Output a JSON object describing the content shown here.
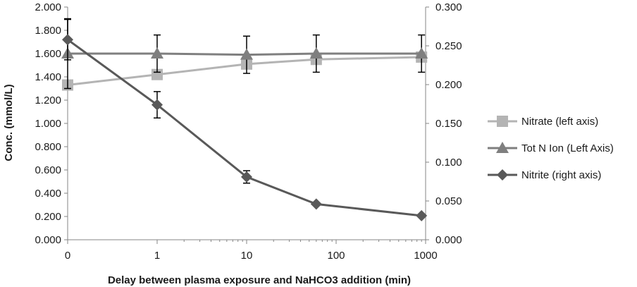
{
  "chart_data": {
    "type": "line",
    "title": "",
    "xlabel": "Delay between plasma exposure and NaHCO3 addition (min)",
    "ylabel": "Conc. (mmol/L)",
    "ylabel_right": "",
    "x_scale": "log",
    "x_tick_labels": [
      "0",
      "1",
      "10",
      "100",
      "1000"
    ],
    "ylim": [
      0,
      2.0
    ],
    "y_tick_labels": [
      "0.000",
      "0.200",
      "0.400",
      "0.600",
      "0.800",
      "1.000",
      "1.200",
      "1.400",
      "1.600",
      "1.800",
      "2.000"
    ],
    "ylim_right": [
      0,
      0.3
    ],
    "y_right_tick_labels": [
      "0.000",
      "0.050",
      "0.100",
      "0.150",
      "0.200",
      "0.250",
      "0.300"
    ],
    "grid": false,
    "legend_position": "right",
    "x": [
      "0",
      "1",
      "10",
      "60",
      "900"
    ],
    "series": [
      {
        "name": "Nitrate (left axis)",
        "axis": "left",
        "marker": "square",
        "color": "#b4b4b4",
        "values": [
          1.33,
          1.42,
          1.51,
          1.55,
          1.57
        ],
        "error": [
          0,
          0,
          0,
          0,
          0
        ]
      },
      {
        "name": "Tot N Ion (Left Axis)",
        "axis": "left",
        "marker": "triangle",
        "color": "#7f7f7f",
        "values": [
          1.6,
          1.6,
          1.59,
          1.6,
          1.6
        ],
        "error": [
          0.3,
          0.16,
          0.16,
          0.16,
          0.16
        ]
      },
      {
        "name": "Nitrite (right axis)",
        "axis": "right",
        "marker": "diamond",
        "color": "#595959",
        "values": [
          0.258,
          0.174,
          0.081,
          0.046,
          0.031
        ],
        "error": [
          0.026,
          0.017,
          0.008,
          0,
          0
        ]
      }
    ]
  }
}
